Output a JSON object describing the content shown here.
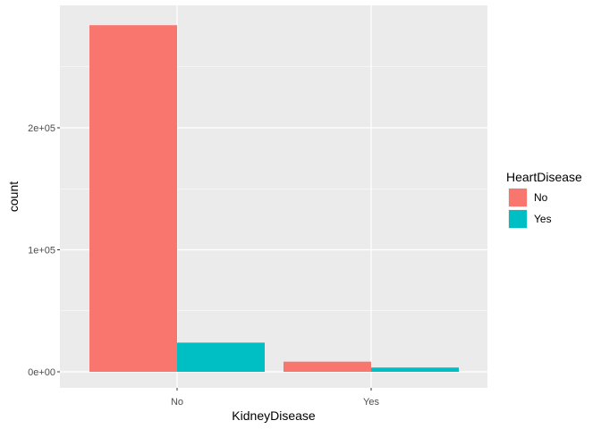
{
  "chart_data": {
    "type": "bar",
    "xlabel": "KidneyDisease",
    "ylabel": "count",
    "categories": [
      "No",
      "Yes"
    ],
    "ylim": [
      0,
      300000
    ],
    "yticks": [
      {
        "value": 0,
        "label": "0e+00"
      },
      {
        "value": 100000,
        "label": "1e+05"
      },
      {
        "value": 200000,
        "label": "2e+05"
      }
    ],
    "legend": {
      "title": "HeartDisease",
      "position": "right"
    },
    "series": [
      {
        "name": "No",
        "color": "#F8766D",
        "values": [
          284100,
          8300
        ]
      },
      {
        "name": "Yes",
        "color": "#00BFC4",
        "values": [
          23900,
          3500
        ]
      }
    ],
    "grid": true,
    "panel_background": "#EBEBEB"
  }
}
